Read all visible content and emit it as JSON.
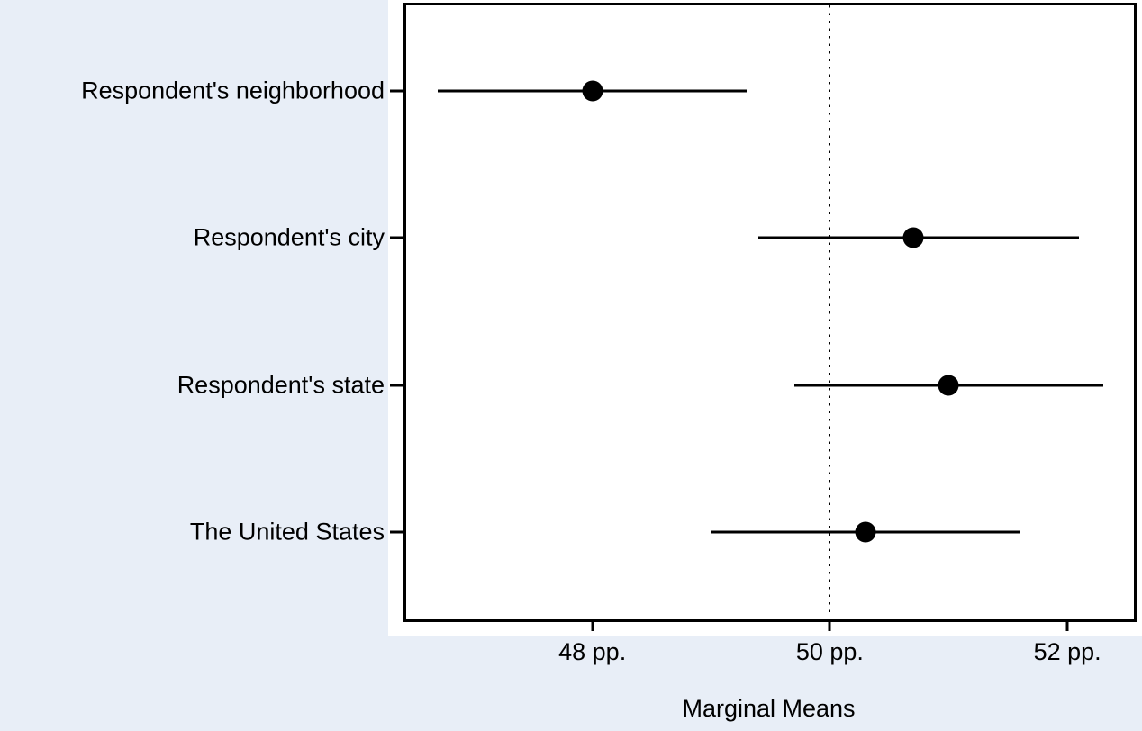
{
  "colors": {
    "figure_background": "#e8eef7",
    "panel_background": "#ffffff",
    "axis_and_marks": "#000000",
    "text": "#000000"
  },
  "chart_data": {
    "type": "scatter",
    "subtype": "dot-and-whisker coefficient plot",
    "title": "",
    "xlabel": "Marginal Means",
    "ylabel": "",
    "categories": [
      "Respondent's neighborhood",
      "Respondent's city",
      "Respondent's state",
      "The United States"
    ],
    "series": [
      {
        "name": "marginal means",
        "estimates": [
          48.0,
          50.7,
          51.0,
          50.3
        ],
        "ci_low": [
          46.7,
          49.4,
          49.7,
          49.0
        ],
        "ci_high": [
          49.3,
          52.1,
          52.3,
          51.6
        ]
      }
    ],
    "x_ticks": [
      48,
      50,
      52
    ],
    "x_tick_labels": [
      "48 pp.",
      "50 pp.",
      "52 pp."
    ],
    "xlim": [
      46.41,
      52.56
    ],
    "reference_line": 50,
    "reference_line_style": "dotted",
    "grid": "off",
    "legend": "none",
    "marker_color": "#000000"
  }
}
